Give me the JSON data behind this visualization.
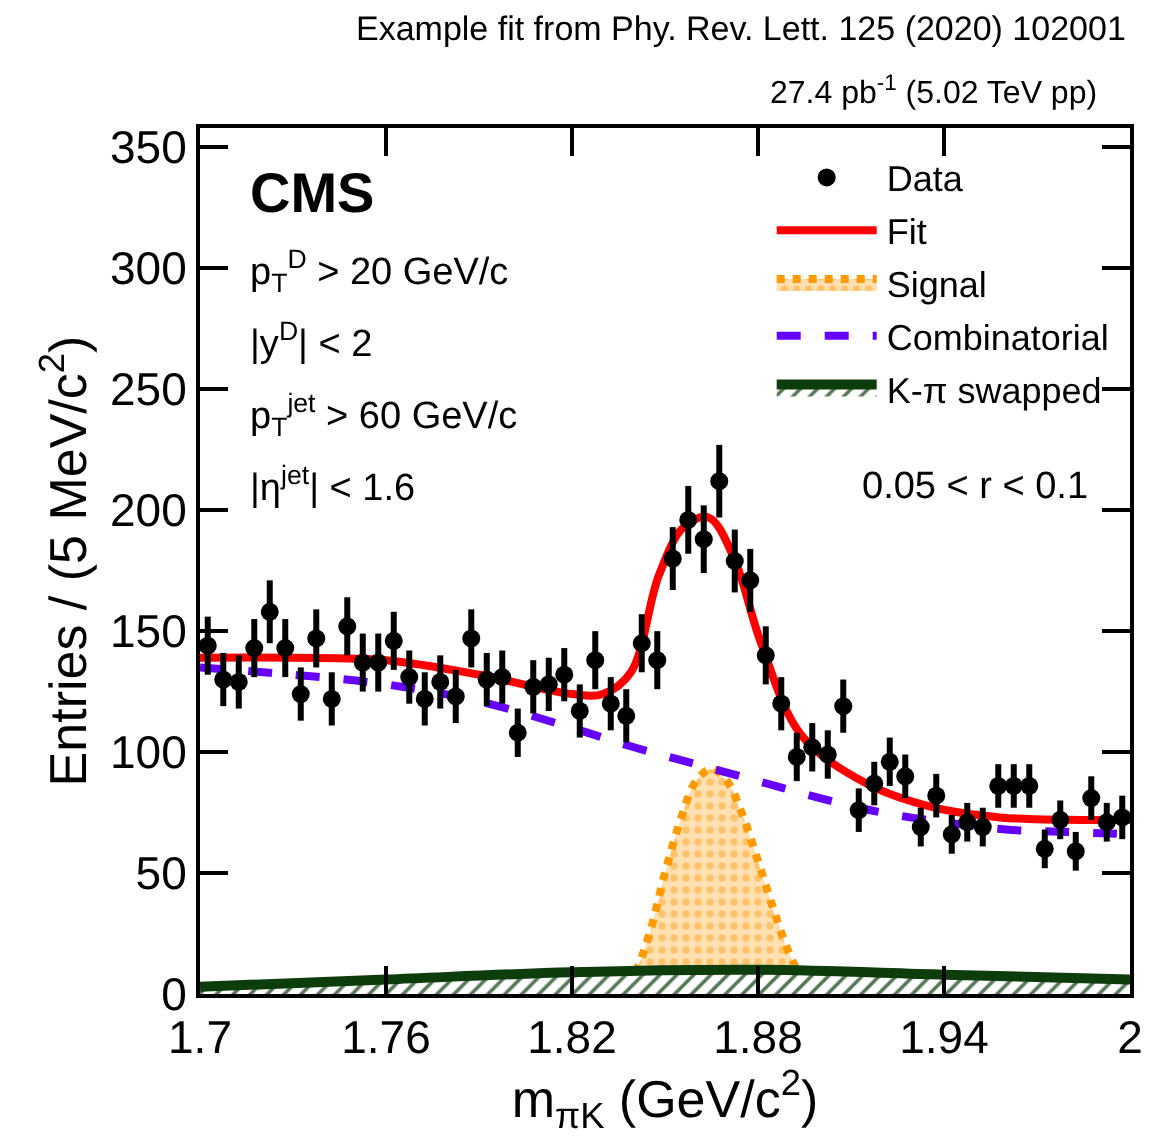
{
  "chart_data": {
    "type": "scatter",
    "title": "Example fit from Phy. Rev. Lett. 125 (2020) 102001",
    "subtitle": "27.4 pb$^{-1}$ (5.02 TeV pp)",
    "xlabel": "m$_{πK}$ (GeV/c$^{2}$)",
    "ylabel": "Entries / (5 MeV/c$^{2}$)",
    "xlim": [
      1.7,
      2.0
    ],
    "xticks": [
      1.7,
      1.76,
      1.82,
      1.88,
      1.94,
      2
    ],
    "ylim": [
      0,
      358
    ],
    "yticks": [
      0,
      50,
      100,
      150,
      200,
      250,
      300,
      350
    ],
    "grid": false,
    "legend": "top right",
    "annotations": [
      "CMS",
      "p$_{T}$$^{D}$ > 20 GeV/c",
      "|y$^{D}$| < 2",
      "p$_{T}$$^{jet}$ > 60 GeV/c",
      "|η$^{jet}$| < 1.6",
      "0.05 < r < 0.1"
    ],
    "series": [
      {
        "name": "Data",
        "color": "#000000",
        "marker": "circle",
        "x": [
          1.7025,
          1.7075,
          1.7125,
          1.7175,
          1.7225,
          1.7275,
          1.7325,
          1.7375,
          1.7425,
          1.7475,
          1.7525,
          1.7575,
          1.7625,
          1.7675,
          1.7725,
          1.7775,
          1.7825,
          1.7875,
          1.7925,
          1.7975,
          1.8025,
          1.8075,
          1.8125,
          1.8175,
          1.8225,
          1.8275,
          1.8325,
          1.8375,
          1.8425,
          1.8475,
          1.8525,
          1.8575,
          1.8625,
          1.8675,
          1.8725,
          1.8775,
          1.8825,
          1.8875,
          1.8925,
          1.8975,
          1.9025,
          1.9075,
          1.9125,
          1.9175,
          1.9225,
          1.9275,
          1.9325,
          1.9375,
          1.9425,
          1.9475,
          1.9525,
          1.9575,
          1.9625,
          1.9675,
          1.9725,
          1.9775,
          1.9825,
          1.9875,
          1.9925,
          1.9975
        ],
        "values": [
          144,
          130,
          129,
          143,
          158,
          143,
          124,
          147,
          122,
          152,
          137,
          137,
          146,
          131,
          122,
          129,
          123,
          147,
          130,
          131,
          108,
          127,
          128,
          132,
          117,
          138,
          120,
          115,
          145,
          138,
          180,
          196,
          188,
          212,
          179,
          171,
          140,
          120,
          98,
          102,
          99,
          119,
          76,
          87,
          96,
          90,
          69,
          82,
          66,
          71,
          69,
          86,
          86,
          86,
          60,
          72,
          59,
          81,
          71,
          73
        ],
        "errors": [
          12,
          11,
          11,
          12,
          13,
          12,
          11,
          12,
          11,
          12,
          12,
          12,
          12,
          11,
          11,
          11,
          11,
          12,
          11,
          11,
          10,
          11,
          11,
          11,
          11,
          12,
          11,
          11,
          12,
          12,
          13,
          14,
          14,
          15,
          13,
          13,
          12,
          11,
          10,
          10,
          10,
          11,
          9,
          9,
          10,
          9,
          8,
          9,
          8,
          8,
          8,
          9,
          9,
          9,
          8,
          8,
          8,
          9,
          8,
          9
        ]
      },
      {
        "name": "Fit",
        "type": "line",
        "color": "#ff0000",
        "line_style": "solid",
        "x": [
          1.7,
          1.73,
          1.76,
          1.79,
          1.82,
          1.83,
          1.839,
          1.848,
          1.856,
          1.864,
          1.872,
          1.881,
          1.894,
          1.915,
          1.937,
          1.958,
          1.98,
          2.0
        ],
        "values": [
          139,
          139,
          138,
          132,
          124,
          124,
          133,
          173,
          193,
          197,
          181,
          145,
          107,
          87,
          77,
          73,
          72,
          72
        ]
      },
      {
        "name": "Signal",
        "type": "area",
        "color": "#ff9900",
        "line_style": "dotted",
        "x": [
          1.7,
          1.835,
          1.84,
          1.845,
          1.85,
          1.855,
          1.86,
          1.865,
          1.87,
          1.875,
          1.88,
          1.885,
          1.89,
          1.895,
          1.9,
          2.0
        ],
        "values": [
          0,
          0,
          8,
          25,
          50,
          72,
          88,
          93,
          88,
          74,
          55,
          35,
          17,
          5,
          0,
          0
        ]
      },
      {
        "name": "Combinatorial",
        "type": "line",
        "color": "#6600ff",
        "line_style": "dashed",
        "x": [
          1.7,
          1.73,
          1.76,
          1.79,
          1.82,
          1.84,
          1.86,
          1.88,
          1.9,
          1.92,
          1.94,
          1.96,
          1.98,
          2.0
        ],
        "values": [
          135,
          132,
          128,
          121,
          110,
          102,
          95,
          88,
          81,
          75,
          71,
          68,
          67,
          66
        ]
      },
      {
        "name": "K-π swapped",
        "type": "area",
        "color": "#0d3d0d",
        "line_style": "solid",
        "x": [
          1.7,
          1.76,
          1.82,
          1.88,
          1.94,
          2.0
        ],
        "values": [
          3,
          6,
          9,
          10,
          8,
          6
        ]
      }
    ]
  }
}
